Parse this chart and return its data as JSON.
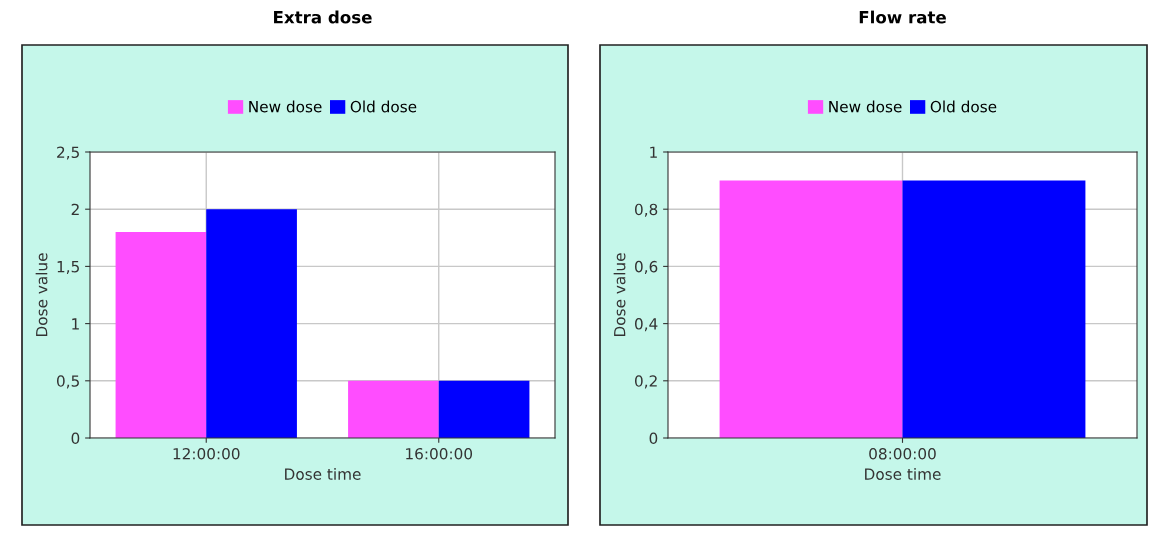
{
  "chart_data": [
    {
      "type": "bar",
      "title": "Extra dose",
      "xlabel": "Dose time",
      "ylabel": "Dose value",
      "categories": [
        "12:00:00",
        "16:00:00"
      ],
      "series": [
        {
          "name": "New dose",
          "color": "#ff4dff",
          "values": [
            1.8,
            0.5
          ]
        },
        {
          "name": "Old dose",
          "color": "#0000ff",
          "values": [
            2,
            0.5
          ]
        }
      ],
      "ylim": [
        0,
        2.5
      ],
      "yticks": [
        0,
        {
          "value": 0.5,
          "label": "0,5"
        },
        1,
        {
          "value": 1.5,
          "label": "1,5"
        },
        2,
        {
          "value": 2.5,
          "label": "2,5"
        }
      ],
      "grid": true,
      "legend": "top"
    },
    {
      "type": "bar",
      "title": "Flow rate",
      "xlabel": "Dose time",
      "ylabel": "Dose value",
      "categories": [
        "08:00:00"
      ],
      "series": [
        {
          "name": "New dose",
          "color": "#ff4dff",
          "values": [
            0.9
          ]
        },
        {
          "name": "Old dose",
          "color": "#0000ff",
          "values": [
            0.9
          ]
        }
      ],
      "ylim": [
        0,
        1
      ],
      "yticks": [
        0,
        {
          "value": 0.2,
          "label": "0,2"
        },
        {
          "value": 0.4,
          "label": "0,4"
        },
        {
          "value": 0.6,
          "label": "0,6"
        },
        {
          "value": 0.8,
          "label": "0,8"
        },
        1
      ],
      "grid": true,
      "legend": "top"
    }
  ]
}
